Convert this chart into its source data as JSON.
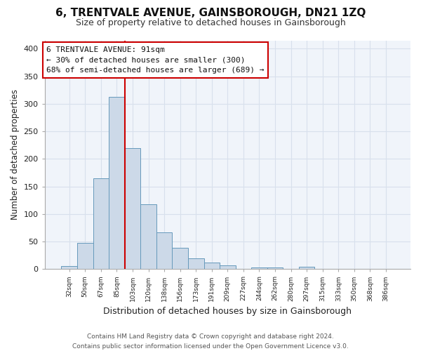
{
  "title": "6, TRENTVALE AVENUE, GAINSBOROUGH, DN21 1ZQ",
  "subtitle": "Size of property relative to detached houses in Gainsborough",
  "xlabel": "Distribution of detached houses by size in Gainsborough",
  "ylabel": "Number of detached properties",
  "footer_line1": "Contains HM Land Registry data © Crown copyright and database right 2024.",
  "footer_line2": "Contains public sector information licensed under the Open Government Licence v3.0.",
  "categories": [
    "32sqm",
    "50sqm",
    "67sqm",
    "85sqm",
    "103sqm",
    "120sqm",
    "138sqm",
    "156sqm",
    "173sqm",
    "191sqm",
    "209sqm",
    "227sqm",
    "244sqm",
    "262sqm",
    "280sqm",
    "297sqm",
    "315sqm",
    "333sqm",
    "350sqm",
    "368sqm",
    "386sqm"
  ],
  "bar_values": [
    5,
    47,
    165,
    312,
    219,
    118,
    67,
    38,
    19,
    12,
    7,
    0,
    3,
    3,
    0,
    4,
    0,
    0,
    0,
    0,
    0
  ],
  "bar_color": "#ccd9e8",
  "bar_edge_color": "#6699bb",
  "annotation_line1": "6 TRENTVALE AVENUE: 91sqm",
  "annotation_line2": "← 30% of detached houses are smaller (300)",
  "annotation_line3": "68% of semi-detached houses are larger (689) →",
  "vline_bar_index": 3,
  "ylim": [
    0,
    415
  ],
  "yticks": [
    0,
    50,
    100,
    150,
    200,
    250,
    300,
    350,
    400
  ],
  "background_color": "#ffffff",
  "plot_bg_color": "#f0f4fa",
  "grid_color": "#d8e0ec",
  "annotation_box_facecolor": "#ffffff",
  "annotation_box_edgecolor": "#cc0000",
  "vline_color": "#cc0000",
  "title_fontsize": 11,
  "subtitle_fontsize": 9
}
